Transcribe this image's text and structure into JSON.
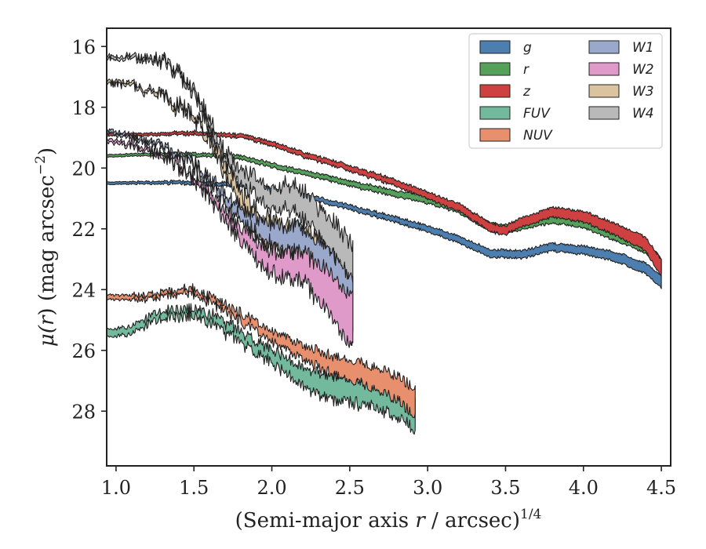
{
  "chart_data": {
    "type": "area",
    "xlabel": "(Semi-major axis r / arcsec)^1/4",
    "xlabel_parts": {
      "main": "(Semi-major axis ",
      "var": "r",
      "rest": " / arcsec)",
      "sup": "1/4"
    },
    "ylabel": "μ(r) (mag arcsec^−2)",
    "ylabel_parts": {
      "mu": "μ(",
      "var": "r",
      "close": ")",
      "rest": " (mag arcsec",
      "sup": "−2",
      "end": ")"
    },
    "xlim": [
      0.94,
      4.56
    ],
    "ylim": [
      29.8,
      15.4
    ],
    "y_inverted": true,
    "xticks": [
      1.0,
      1.5,
      2.0,
      2.5,
      3.0,
      3.5,
      4.0,
      4.5
    ],
    "xtick_labels": [
      "1.0",
      "1.5",
      "2.0",
      "2.5",
      "3.0",
      "3.5",
      "4.0",
      "4.5"
    ],
    "yticks": [
      16,
      18,
      20,
      22,
      24,
      26,
      28
    ],
    "ytick_labels": [
      "16",
      "18",
      "20",
      "22",
      "24",
      "26",
      "28"
    ],
    "grid": false,
    "legend": {
      "placement": "top-right",
      "columns": 2
    },
    "series": [
      {
        "name": "g",
        "color": "#4c7fb0",
        "x": [
          0.94,
          1.2,
          1.5,
          1.8,
          2.0,
          2.2,
          2.5,
          2.8,
          3.0,
          3.2,
          3.4,
          3.6,
          3.8,
          4.0,
          4.2,
          4.4,
          4.5
        ],
        "mu": [
          20.5,
          20.48,
          20.48,
          20.55,
          20.7,
          20.9,
          21.3,
          21.7,
          22.0,
          22.35,
          22.8,
          22.85,
          22.6,
          22.7,
          22.9,
          23.3,
          23.75
        ],
        "width": [
          0.08,
          0.08,
          0.1,
          0.12,
          0.12,
          0.14,
          0.15,
          0.18,
          0.2,
          0.22,
          0.25,
          0.25,
          0.25,
          0.27,
          0.3,
          0.35,
          0.4
        ],
        "noise": 0.06
      },
      {
        "name": "r",
        "color": "#55a05a",
        "x": [
          0.94,
          1.2,
          1.5,
          1.8,
          2.0,
          2.2,
          2.5,
          2.8,
          3.0,
          3.2,
          3.4,
          3.5,
          3.6,
          3.8,
          4.0,
          4.2,
          4.4,
          4.5
        ],
        "mu": [
          19.6,
          19.55,
          19.55,
          19.65,
          19.9,
          20.15,
          20.5,
          20.85,
          21.05,
          21.35,
          21.95,
          22.0,
          21.9,
          21.65,
          21.8,
          22.2,
          22.6,
          23.2
        ],
        "width": [
          0.08,
          0.08,
          0.1,
          0.12,
          0.14,
          0.15,
          0.17,
          0.2,
          0.22,
          0.25,
          0.27,
          0.27,
          0.28,
          0.3,
          0.32,
          0.35,
          0.4,
          0.45
        ],
        "noise": 0.06
      },
      {
        "name": "z",
        "color": "#cf4040",
        "x": [
          0.94,
          1.2,
          1.5,
          1.8,
          2.0,
          2.2,
          2.5,
          2.8,
          3.0,
          3.2,
          3.4,
          3.5,
          3.6,
          3.8,
          4.0,
          4.2,
          4.4,
          4.5
        ],
        "mu": [
          18.9,
          18.9,
          18.85,
          18.95,
          19.2,
          19.55,
          20.0,
          20.5,
          20.9,
          21.3,
          21.95,
          22.05,
          21.8,
          21.45,
          21.6,
          22.0,
          22.5,
          23.3
        ],
        "width": [
          0.08,
          0.08,
          0.1,
          0.12,
          0.14,
          0.16,
          0.18,
          0.2,
          0.22,
          0.25,
          0.28,
          0.28,
          0.3,
          0.32,
          0.35,
          0.38,
          0.45,
          0.55
        ],
        "noise": 0.07
      },
      {
        "name": "FUV",
        "color": "#72b99e",
        "x": [
          0.94,
          1.1,
          1.2,
          1.3,
          1.5,
          1.6,
          1.8,
          2.0,
          2.2,
          2.4,
          2.6,
          2.8,
          2.92
        ],
        "mu": [
          25.45,
          25.35,
          25.05,
          24.8,
          24.75,
          24.95,
          25.55,
          26.2,
          26.9,
          27.25,
          27.35,
          27.7,
          28.05
        ],
        "width": [
          0.25,
          0.25,
          0.25,
          0.25,
          0.25,
          0.3,
          0.35,
          0.45,
          0.6,
          0.8,
          0.9,
          1.0,
          1.1
        ],
        "noise": 0.3
      },
      {
        "name": "NUV",
        "color": "#e8906e",
        "x": [
          0.94,
          1.2,
          1.4,
          1.5,
          1.6,
          1.8,
          2.0,
          2.2,
          2.4,
          2.6,
          2.8,
          2.92
        ],
        "mu": [
          24.25,
          24.25,
          24.1,
          24.05,
          24.3,
          24.9,
          25.5,
          26.1,
          26.5,
          26.8,
          27.2,
          27.7
        ],
        "width": [
          0.15,
          0.15,
          0.15,
          0.18,
          0.2,
          0.28,
          0.35,
          0.45,
          0.6,
          0.7,
          0.8,
          0.9
        ],
        "noise": 0.25
      },
      {
        "name": "W1",
        "color": "#9aa8cb",
        "x": [
          0.94,
          1.1,
          1.3,
          1.5,
          1.6,
          1.7,
          1.8,
          1.9,
          2.0,
          2.1,
          2.2,
          2.3,
          2.4,
          2.52
        ],
        "mu": [
          18.8,
          18.95,
          19.3,
          19.9,
          20.4,
          21.0,
          21.5,
          21.9,
          22.2,
          22.3,
          22.4,
          22.9,
          23.5,
          24.5
        ],
        "width": [
          0.1,
          0.1,
          0.12,
          0.15,
          0.2,
          0.3,
          0.4,
          0.55,
          0.7,
          0.8,
          0.9,
          1.1,
          1.3,
          1.6
        ],
        "noise": 0.35
      },
      {
        "name": "W2",
        "color": "#e09ac9",
        "x": [
          0.94,
          1.1,
          1.3,
          1.5,
          1.6,
          1.7,
          1.8,
          1.9,
          2.0,
          2.1,
          2.2,
          2.3,
          2.4,
          2.52
        ],
        "mu": [
          19.1,
          19.25,
          19.6,
          20.3,
          20.9,
          21.6,
          22.2,
          22.7,
          23.1,
          23.2,
          23.3,
          23.7,
          24.3,
          25.1
        ],
        "width": [
          0.1,
          0.1,
          0.12,
          0.15,
          0.2,
          0.3,
          0.45,
          0.6,
          0.75,
          0.85,
          0.95,
          1.2,
          1.4,
          1.7
        ],
        "noise": 0.4
      },
      {
        "name": "W3",
        "color": "#dcc3a0",
        "x": [
          0.94,
          1.1,
          1.3,
          1.5,
          1.6,
          1.7,
          1.8,
          1.9,
          2.0,
          2.1,
          2.2,
          2.3,
          2.4,
          2.52
        ],
        "mu": [
          17.2,
          17.25,
          17.6,
          18.3,
          19.0,
          20.0,
          21.0,
          21.8,
          22.2,
          22.3,
          22.5,
          23.0,
          23.8,
          24.8
        ],
        "width": [
          0.1,
          0.1,
          0.12,
          0.15,
          0.25,
          0.35,
          0.5,
          0.7,
          0.9,
          1.0,
          1.1,
          1.3,
          1.5,
          1.8
        ],
        "noise": 0.45
      },
      {
        "name": "W4",
        "color": "#b9b9b9",
        "x": [
          0.94,
          1.1,
          1.3,
          1.4,
          1.5,
          1.6,
          1.7,
          1.8,
          1.9,
          2.0,
          2.1,
          2.2,
          2.3,
          2.4,
          2.52
        ],
        "mu": [
          16.35,
          16.35,
          16.45,
          16.9,
          17.5,
          18.5,
          19.7,
          20.3,
          20.6,
          21.1,
          20.9,
          21.2,
          21.8,
          22.4,
          23.3
        ],
        "width": [
          0.1,
          0.1,
          0.12,
          0.15,
          0.2,
          0.3,
          0.4,
          0.5,
          0.6,
          0.7,
          0.8,
          0.9,
          1.0,
          1.2,
          1.4
        ],
        "noise": 0.4
      }
    ]
  }
}
